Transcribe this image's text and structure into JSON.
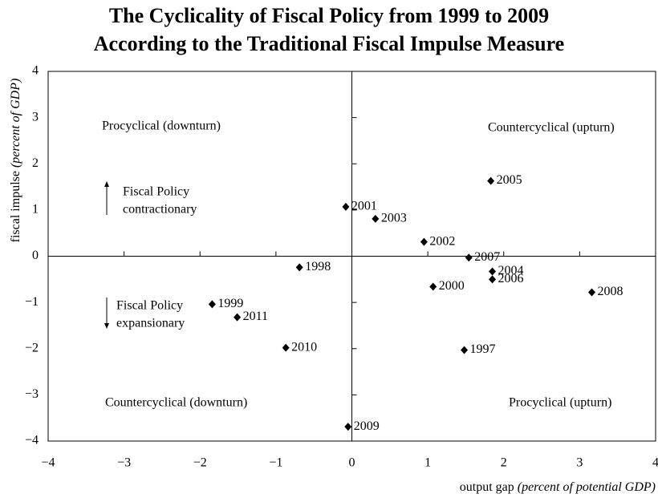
{
  "chart_data": {
    "type": "scatter",
    "title": [
      "The Cyclicality of Fiscal Policy from 1999 to 2009",
      "According to the Traditional Fiscal Impulse Measure"
    ],
    "xlabel": {
      "text": "output gap ",
      "note": "(percent of potential GDP)"
    },
    "ylabel": {
      "text": "fiscal impulse ",
      "note": "(percent of GDP)"
    },
    "xlim": [
      -4,
      4
    ],
    "ylim": [
      -4,
      4
    ],
    "xticks": [
      {
        "value": -4,
        "label": "−4"
      },
      {
        "value": -3,
        "label": "−3"
      },
      {
        "value": -2,
        "label": "−2"
      },
      {
        "value": -1,
        "label": "−1"
      },
      0,
      1,
      2,
      3,
      4
    ],
    "yticks": [
      {
        "value": -4,
        "label": "−4"
      },
      {
        "value": -3,
        "label": "−3"
      },
      {
        "value": -2,
        "label": "−2"
      },
      {
        "value": -1,
        "label": "−1"
      },
      0,
      1,
      2,
      3,
      4
    ],
    "color": "#000000",
    "labels": [
      "2001",
      "2003",
      "2002",
      "2007",
      "2005",
      "2004",
      "2006",
      "2000",
      "2008",
      "1997",
      "1998",
      "1999",
      "2011",
      "2010",
      "2009"
    ],
    "x": [
      -0.08,
      0.31,
      0.95,
      1.54,
      1.83,
      1.85,
      1.85,
      1.07,
      3.16,
      1.48,
      -0.69,
      -1.84,
      -1.51,
      -0.87,
      -0.05
    ],
    "y": [
      1.07,
      0.81,
      0.31,
      -0.03,
      1.63,
      -0.33,
      -0.5,
      -0.66,
      -0.78,
      -2.03,
      -0.24,
      -1.04,
      -1.32,
      -1.98,
      -3.69
    ],
    "annotations": [
      [
        "Procyclical (downturn)"
      ],
      [
        "Countercyclical (upturn)"
      ],
      [
        "Countercyclical (downturn)"
      ],
      [
        "Procyclical (upturn)"
      ],
      [
        "Fiscal Policy",
        "contractionary"
      ],
      [
        "Fiscal Policy",
        "expansionary"
      ]
    ]
  }
}
